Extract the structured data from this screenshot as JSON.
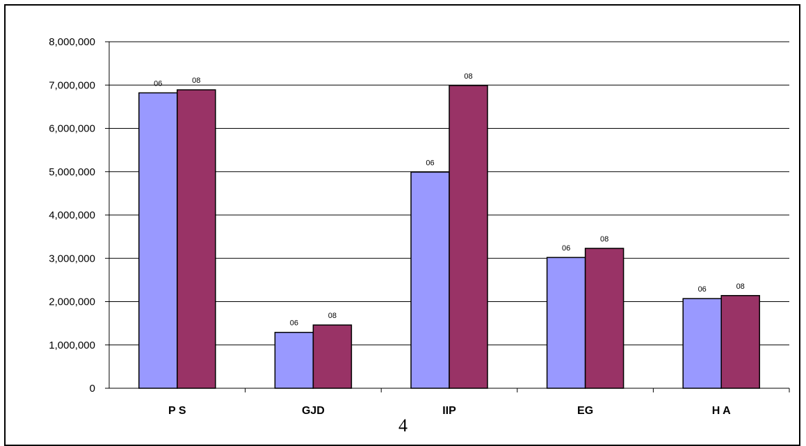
{
  "chart_data": {
    "type": "bar",
    "categories": [
      "P S",
      "GJD",
      "IIP",
      "EG",
      "H A"
    ],
    "series": [
      {
        "name": "06",
        "values": [
          6820000,
          1290000,
          4990000,
          3020000,
          2070000
        ],
        "color": "#9999ff"
      },
      {
        "name": "08",
        "values": [
          6890000,
          1460000,
          6990000,
          3230000,
          2140000
        ],
        "color": "#993366"
      }
    ],
    "bar_labels": [
      "06",
      "08"
    ],
    "yticks": [
      "0",
      "1,000,000",
      "2,000,000",
      "3,000,000",
      "4,000,000",
      "5,000,000",
      "6,000,000",
      "7,000,000",
      "8,000,000"
    ],
    "ylim": [
      0,
      8000000
    ],
    "ystep": 1000000,
    "grid": true,
    "legend": "none",
    "title": "",
    "xlabel": "",
    "ylabel": ""
  },
  "page_number": "4"
}
